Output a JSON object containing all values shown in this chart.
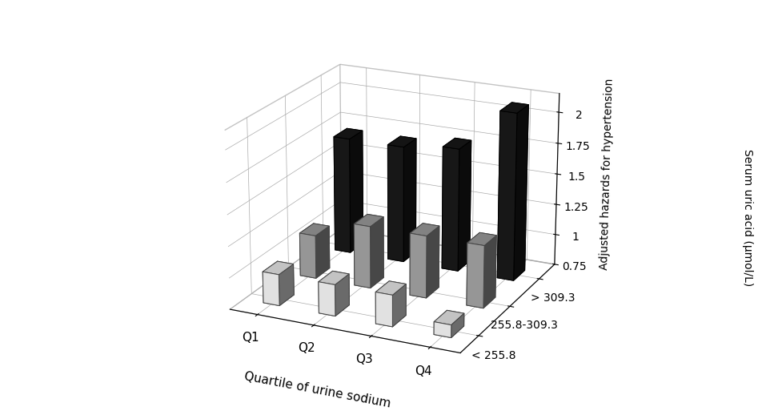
{
  "quartiles": [
    "Q1",
    "Q2",
    "Q3",
    "Q4"
  ],
  "series_labels": [
    "< 255.8",
    "255.8-309.3",
    "> 309.3"
  ],
  "values": [
    [
      1.0,
      1.0,
      1.0,
      0.85
    ],
    [
      1.1,
      1.25,
      1.25,
      1.25
    ],
    [
      1.7,
      1.7,
      1.75,
      2.1
    ]
  ],
  "bar_colors": [
    "#ffffff",
    "#aaaaaa",
    "#1a1a1a"
  ],
  "bar_edge_colors": [
    "#444444",
    "#444444",
    "#000000"
  ],
  "ylabel": "Adjusted hazards for hypertension",
  "xlabel": "Quartile of urine sodium",
  "zlabel": "Serum uric acid (μmol/L)",
  "zlim": [
    0.75,
    2.15
  ],
  "zticks": [
    0.75,
    1.0,
    1.25,
    1.5,
    1.75,
    2.0
  ],
  "ztick_labels": [
    "0.75",
    "1",
    "1.25",
    "1.5",
    "1.75",
    "2"
  ],
  "background_color": "#ffffff",
  "bar_width": 0.35,
  "bar_depth": 0.35,
  "elev": 20,
  "azim": -65
}
